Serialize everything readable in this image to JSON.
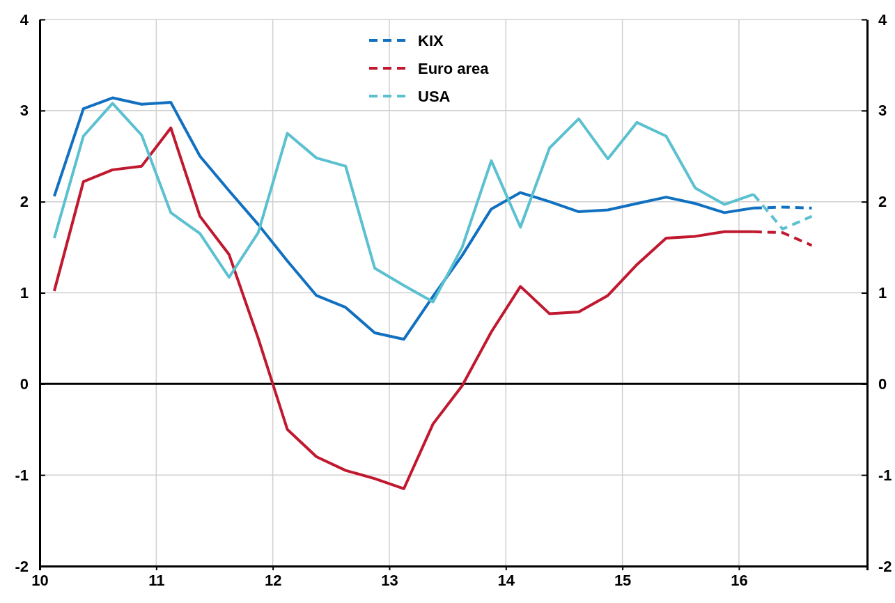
{
  "chart_data": {
    "type": "line",
    "x": [
      10.125,
      10.375,
      10.625,
      10.875,
      11.125,
      11.375,
      11.625,
      11.875,
      12.125,
      12.375,
      12.625,
      12.875,
      13.125,
      13.375,
      13.625,
      13.875,
      14.125,
      14.375,
      14.625,
      14.875,
      15.125,
      15.375,
      15.625,
      15.875,
      16.125
    ],
    "series": [
      {
        "color": "#1170c0",
        "line_style": "solid",
        "values": [
          2.06,
          3.02,
          3.14,
          3.07,
          3.09,
          2.5,
          2.12,
          1.75,
          1.35,
          0.97,
          0.84,
          0.56,
          0.49,
          0.96,
          1.41,
          1.92,
          2.1,
          2.0,
          1.89,
          1.91,
          1.98,
          2.05,
          1.98,
          1.88,
          1.93
        ]
      },
      {
        "color": "#c0182f",
        "line_style": "solid",
        "values": [
          1.02,
          2.22,
          2.35,
          2.39,
          2.81,
          1.84,
          1.42,
          0.5,
          -0.5,
          -0.8,
          -0.95,
          -1.04,
          -1.15,
          -0.44,
          -0.02,
          0.57,
          1.07,
          0.77,
          0.79,
          0.97,
          1.31,
          1.6,
          1.62,
          1.67,
          1.67
        ]
      },
      {
        "color": "#5bc0d0",
        "line_style": "solid",
        "values": [
          1.6,
          2.72,
          3.08,
          2.73,
          1.88,
          1.65,
          1.17,
          1.66,
          2.75,
          2.48,
          2.39,
          1.27,
          1.08,
          0.9,
          1.5,
          2.45,
          1.72,
          2.59,
          2.91,
          2.47,
          2.87,
          2.72,
          2.15,
          1.97,
          2.08
        ]
      },
      {
        "name": "KIX",
        "color": "#1170c0",
        "line_style": "dashed",
        "x": [
          16.125,
          16.375,
          16.625
        ],
        "values": [
          1.93,
          1.94,
          1.93
        ]
      },
      {
        "name": "Euro area",
        "color": "#c0182f",
        "line_style": "dashed",
        "x": [
          16.125,
          16.375,
          16.625
        ],
        "values": [
          1.67,
          1.66,
          1.52
        ]
      },
      {
        "name": "USA",
        "color": "#5bc0d0",
        "line_style": "dashed",
        "x": [
          16.125,
          16.375,
          16.625
        ],
        "values": [
          2.08,
          1.7,
          1.84
        ]
      }
    ],
    "xlim": [
      10,
      17.1
    ],
    "xticks": [
      10,
      11,
      12,
      13,
      14,
      15,
      16
    ],
    "ylim": [
      -2,
      4
    ],
    "yticks": [
      -2,
      -1,
      0,
      1,
      2,
      3,
      4
    ],
    "y2lim": [
      -2,
      4
    ],
    "y2ticks": [
      -2,
      -1,
      0,
      1,
      2,
      3,
      4
    ],
    "ref_lines": [
      {
        "axis": "y",
        "value": 0,
        "color": "#000000"
      }
    ],
    "grid": true,
    "legend": "top",
    "marker": "none"
  }
}
